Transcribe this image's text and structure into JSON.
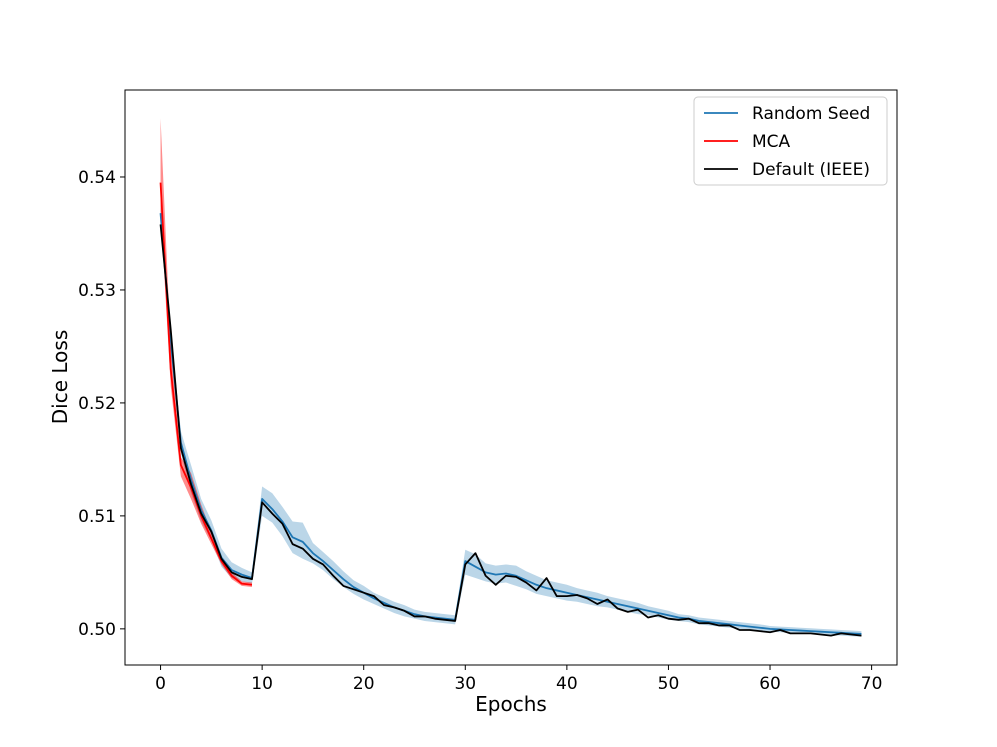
{
  "chart_data": {
    "type": "line",
    "title": "",
    "xlabel": "Epochs",
    "ylabel": "Dice Loss",
    "xlim": [
      -3.5,
      72.5
    ],
    "ylim": [
      0.4968,
      0.5477
    ],
    "xticks": [
      0,
      10,
      20,
      30,
      40,
      50,
      60,
      70
    ],
    "yticks": [
      0.5,
      0.51,
      0.52,
      0.53,
      0.54
    ],
    "ytick_labels": [
      "0.50",
      "0.51",
      "0.52",
      "0.53",
      "0.54"
    ],
    "grid": false,
    "legend_position": "top-right",
    "colors": {
      "random_seed": "#1f77b4",
      "mca": "#ff0000",
      "default": "#000000"
    },
    "series": [
      {
        "name": "Random Seed",
        "x": [
          0,
          1,
          2,
          3,
          4,
          5,
          6,
          7,
          8,
          9,
          10,
          11,
          12,
          13,
          14,
          15,
          16,
          17,
          18,
          19,
          20,
          21,
          22,
          23,
          24,
          25,
          26,
          27,
          28,
          29,
          30,
          31,
          32,
          33,
          34,
          35,
          36,
          37,
          38,
          39,
          40,
          41,
          42,
          43,
          44,
          45,
          46,
          47,
          48,
          49,
          50,
          51,
          52,
          53,
          54,
          55,
          56,
          57,
          58,
          59,
          60,
          61,
          62,
          63,
          64,
          65,
          66,
          67,
          68,
          69
        ],
        "y": [
          0.5368,
          0.5255,
          0.5165,
          0.5132,
          0.5105,
          0.5087,
          0.5063,
          0.5052,
          0.5048,
          0.5045,
          0.5115,
          0.5106,
          0.5095,
          0.5081,
          0.5077,
          0.5067,
          0.506,
          0.5052,
          0.5044,
          0.5037,
          0.5032,
          0.5027,
          0.5023,
          0.5019,
          0.5016,
          0.5013,
          0.5011,
          0.501,
          0.5009,
          0.5008,
          0.506,
          0.5055,
          0.505,
          0.5048,
          0.5049,
          0.5047,
          0.5043,
          0.5039,
          0.5036,
          0.5034,
          0.5032,
          0.503,
          0.5028,
          0.5026,
          0.5024,
          0.5022,
          0.502,
          0.5018,
          0.5016,
          0.5014,
          0.5012,
          0.501,
          0.5009,
          0.5007,
          0.5006,
          0.5005,
          0.5004,
          0.5003,
          0.5002,
          0.5001,
          0.5,
          0.49995,
          0.4999,
          0.49985,
          0.4998,
          0.49975,
          0.4997,
          0.49965,
          0.4996,
          0.49955
        ],
        "band_lower": [
          0.5355,
          0.5245,
          0.5155,
          0.512,
          0.5095,
          0.5078,
          0.5055,
          0.5045,
          0.5042,
          0.504,
          0.51,
          0.5094,
          0.5082,
          0.5067,
          0.5062,
          0.5058,
          0.5052,
          0.5044,
          0.5037,
          0.5031,
          0.5026,
          0.5022,
          0.5018,
          0.5014,
          0.5011,
          0.5009,
          0.5007,
          0.5006,
          0.5005,
          0.5004,
          0.5048,
          0.5045,
          0.5042,
          0.504,
          0.5041,
          0.5038,
          0.5035,
          0.5031,
          0.5029,
          0.5027,
          0.5025,
          0.5024,
          0.5022,
          0.502,
          0.5019,
          0.5017,
          0.5015,
          0.5013,
          0.5012,
          0.501,
          0.5008,
          0.5007,
          0.5006,
          0.5004,
          0.5003,
          0.5002,
          0.5001,
          0.5,
          0.49995,
          0.49985,
          0.49975,
          0.4997,
          0.49965,
          0.4996,
          0.49955,
          0.4995,
          0.49945,
          0.4994,
          0.49935,
          0.4993
        ],
        "band_upper": [
          0.538,
          0.5265,
          0.5175,
          0.5145,
          0.5115,
          0.5096,
          0.5071,
          0.5059,
          0.5054,
          0.505,
          0.5126,
          0.512,
          0.5108,
          0.5095,
          0.5094,
          0.5076,
          0.5068,
          0.506,
          0.5051,
          0.5043,
          0.5038,
          0.5032,
          0.5028,
          0.5024,
          0.5021,
          0.5017,
          0.5015,
          0.5014,
          0.5013,
          0.5012,
          0.507,
          0.5066,
          0.5058,
          0.5056,
          0.5057,
          0.5056,
          0.5051,
          0.5047,
          0.5043,
          0.5041,
          0.5039,
          0.5036,
          0.5034,
          0.5032,
          0.5029,
          0.5027,
          0.5025,
          0.5023,
          0.502,
          0.5018,
          0.5016,
          0.5013,
          0.5012,
          0.501,
          0.5009,
          0.5008,
          0.5007,
          0.5006,
          0.5005,
          0.5004,
          0.50025,
          0.5002,
          0.50015,
          0.5001,
          0.50005,
          0.5,
          0.49995,
          0.4999,
          0.49985,
          0.4998
        ]
      },
      {
        "name": "MCA",
        "x": [
          0,
          1,
          2,
          3,
          4,
          5,
          6,
          7,
          8,
          9
        ],
        "y": [
          0.5395,
          0.523,
          0.5145,
          0.5125,
          0.51,
          0.508,
          0.506,
          0.5047,
          0.504,
          0.5039
        ],
        "band_lower": [
          0.537,
          0.5215,
          0.5135,
          0.5115,
          0.5093,
          0.5075,
          0.5057,
          0.5044,
          0.5038,
          0.5037
        ],
        "band_upper": [
          0.5452,
          0.525,
          0.5152,
          0.5138,
          0.511,
          0.5086,
          0.5064,
          0.505,
          0.5042,
          0.5041
        ]
      },
      {
        "name": "Default (IEEE)",
        "x": [
          0,
          1,
          2,
          3,
          4,
          5,
          6,
          7,
          8,
          9,
          10,
          11,
          12,
          13,
          14,
          15,
          16,
          17,
          18,
          19,
          20,
          21,
          22,
          23,
          24,
          25,
          26,
          27,
          28,
          29,
          30,
          31,
          32,
          33,
          34,
          35,
          36,
          37,
          38,
          39,
          40,
          41,
          42,
          43,
          44,
          45,
          46,
          47,
          48,
          49,
          50,
          51,
          52,
          53,
          54,
          55,
          56,
          57,
          58,
          59,
          60,
          61,
          62,
          63,
          64,
          65,
          66,
          67,
          68,
          69
        ],
        "y": [
          0.5358,
          0.5265,
          0.516,
          0.5128,
          0.5102,
          0.5086,
          0.5062,
          0.505,
          0.5046,
          0.5044,
          0.5112,
          0.5102,
          0.5093,
          0.5075,
          0.5071,
          0.5062,
          0.5057,
          0.5047,
          0.5038,
          0.5035,
          0.5032,
          0.5029,
          0.5021,
          0.5019,
          0.5016,
          0.5011,
          0.5011,
          0.5009,
          0.5008,
          0.5007,
          0.5057,
          0.5067,
          0.5047,
          0.5039,
          0.5047,
          0.5046,
          0.5041,
          0.5034,
          0.5045,
          0.5029,
          0.5029,
          0.503,
          0.5027,
          0.5022,
          0.5026,
          0.5018,
          0.5015,
          0.5017,
          0.501,
          0.5012,
          0.5009,
          0.5008,
          0.5009,
          0.5005,
          0.5005,
          0.5003,
          0.5003,
          0.4999,
          0.4999,
          0.4998,
          0.4997,
          0.4999,
          0.4996,
          0.4996,
          0.4996,
          0.4995,
          0.4994,
          0.4996,
          0.4995,
          0.4994
        ]
      }
    ]
  }
}
